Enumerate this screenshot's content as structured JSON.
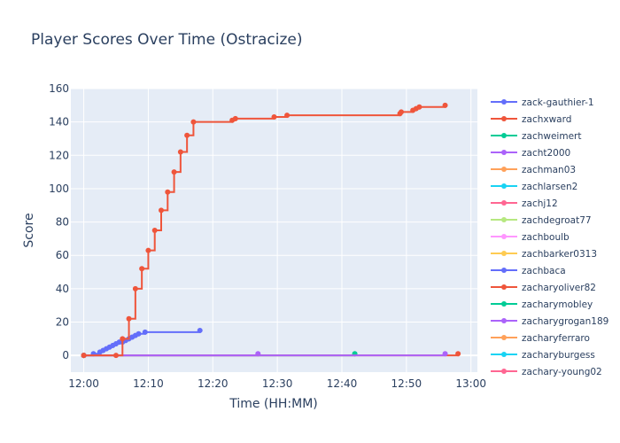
{
  "chart_data": {
    "type": "line",
    "title": "Player Scores Over Time (Ostracize)",
    "xlabel": "Time (HH:MM)",
    "ylabel": "Score",
    "xlim": [
      "11:58",
      "13:01"
    ],
    "ylim": [
      -10,
      160
    ],
    "x_ticks": [
      "12:00",
      "12:10",
      "12:20",
      "12:30",
      "12:40",
      "12:50",
      "13:00"
    ],
    "y_ticks": [
      0,
      20,
      40,
      60,
      80,
      100,
      120,
      140,
      160
    ],
    "grid": true,
    "legend_position": "right",
    "series": [
      {
        "name": "zack-gauthier-1",
        "color": "#636efa",
        "points": [
          [
            "12:00",
            0
          ],
          [
            "12:01.5",
            1
          ],
          [
            "12:02.5",
            2
          ],
          [
            "12:03",
            3
          ],
          [
            "12:03.5",
            4
          ],
          [
            "12:04",
            5
          ],
          [
            "12:04.5",
            6
          ],
          [
            "12:05",
            7
          ],
          [
            "12:05.5",
            8
          ],
          [
            "12:06",
            8
          ],
          [
            "12:06.5",
            9
          ],
          [
            "12:07",
            10
          ],
          [
            "12:07.5",
            11
          ],
          [
            "12:08",
            12
          ],
          [
            "12:08.5",
            13
          ],
          [
            "12:09.5",
            14
          ],
          [
            "12:18",
            15
          ]
        ]
      },
      {
        "name": "zachxward",
        "color": "#ef553b",
        "points": [
          [
            "12:00",
            0
          ],
          [
            "12:05",
            0
          ],
          [
            "12:06",
            10
          ],
          [
            "12:07",
            22
          ],
          [
            "12:08",
            40
          ],
          [
            "12:09",
            52
          ],
          [
            "12:10",
            63
          ],
          [
            "12:11",
            75
          ],
          [
            "12:12",
            87
          ],
          [
            "12:13",
            98
          ],
          [
            "12:14",
            110
          ],
          [
            "12:15",
            122
          ],
          [
            "12:16",
            132
          ],
          [
            "12:17",
            140
          ],
          [
            "12:23",
            141
          ],
          [
            "12:23.5",
            142
          ],
          [
            "12:29.5",
            143
          ],
          [
            "12:31.5",
            144
          ],
          [
            "12:49",
            145
          ],
          [
            "12:49.2",
            146
          ],
          [
            "12:51",
            147
          ],
          [
            "12:51.5",
            148
          ],
          [
            "12:52",
            149
          ],
          [
            "12:56",
            150
          ]
        ]
      },
      {
        "name": "zachweimert",
        "color": "#00cc96",
        "points": [
          [
            "12:00",
            0
          ],
          [
            "12:42",
            1
          ]
        ]
      },
      {
        "name": "zacht2000",
        "color": "#ab63fa",
        "points": [
          [
            "12:00",
            0
          ],
          [
            "12:27",
            1
          ]
        ]
      },
      {
        "name": "zachman03",
        "color": "#ffa15a",
        "points": [
          [
            "12:00",
            0
          ]
        ]
      },
      {
        "name": "zachlarsen2",
        "color": "#19d3f3",
        "points": [
          [
            "12:00",
            0
          ]
        ]
      },
      {
        "name": "zachj12",
        "color": "#ff6692",
        "points": [
          [
            "12:00",
            0
          ]
        ]
      },
      {
        "name": "zachdegroat77",
        "color": "#b6e880",
        "points": [
          [
            "12:00",
            0
          ]
        ]
      },
      {
        "name": "zachboulb",
        "color": "#ff97ff",
        "points": [
          [
            "12:00",
            0
          ]
        ]
      },
      {
        "name": "zachbarker0313",
        "color": "#fecb52",
        "points": [
          [
            "12:00",
            0
          ]
        ]
      },
      {
        "name": "zachbaca",
        "color": "#636efa",
        "points": [
          [
            "12:00",
            0
          ]
        ]
      },
      {
        "name": "zacharyoliver82",
        "color": "#ef553b",
        "points": [
          [
            "12:00",
            0
          ],
          [
            "12:58",
            1
          ]
        ]
      },
      {
        "name": "zacharymobley",
        "color": "#00cc96",
        "points": [
          [
            "12:00",
            0
          ]
        ]
      },
      {
        "name": "zacharygrogan189",
        "color": "#ab63fa",
        "points": [
          [
            "12:00",
            0
          ],
          [
            "12:56",
            1
          ]
        ]
      },
      {
        "name": "zacharyferraro",
        "color": "#ffa15a",
        "points": [
          [
            "12:00",
            0
          ]
        ]
      },
      {
        "name": "zacharyburgess",
        "color": "#19d3f3",
        "points": [
          [
            "12:00",
            0
          ]
        ]
      },
      {
        "name": "zachary-young02",
        "color": "#ff6692",
        "points": [
          [
            "12:00",
            0
          ]
        ]
      }
    ]
  }
}
